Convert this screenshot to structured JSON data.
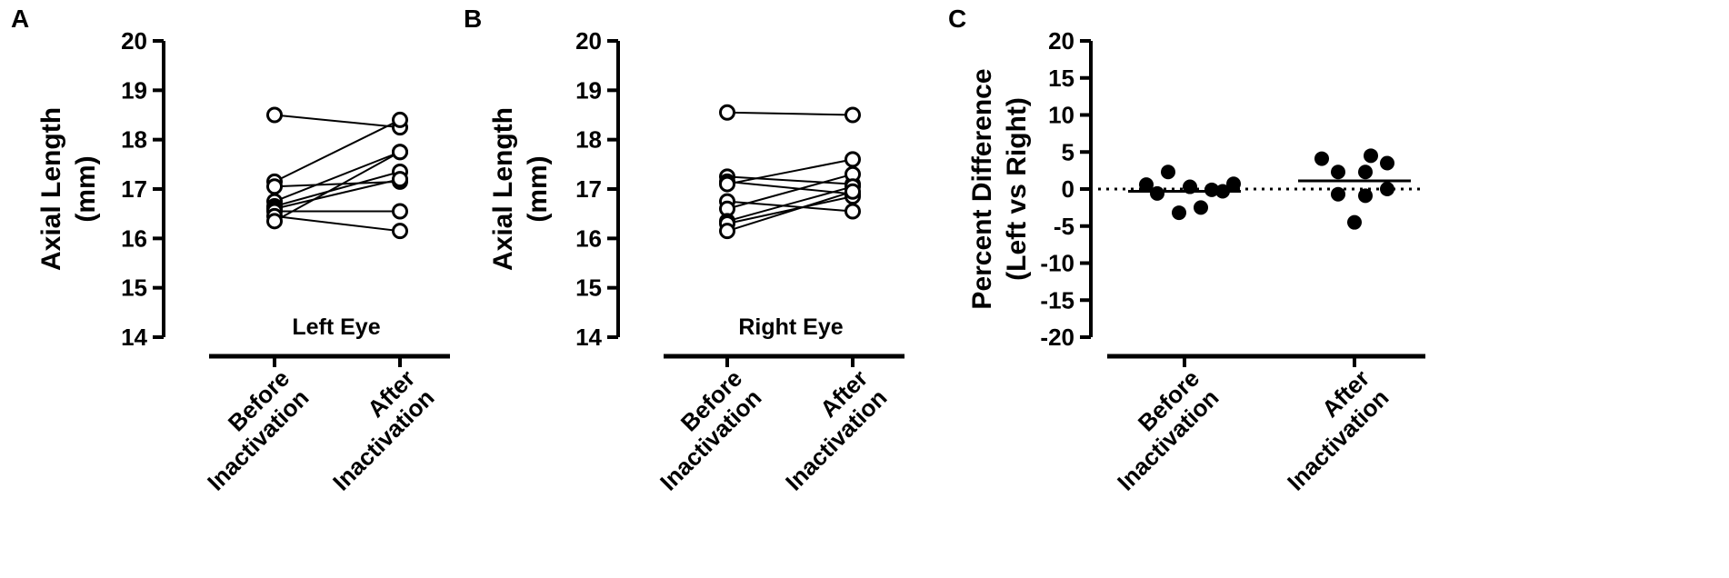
{
  "chart_data": [
    {
      "panel": "A",
      "type": "line",
      "title": "Left Eye",
      "ylabel": "Axial Length",
      "yunit": "(mm)",
      "ylim": [
        14,
        20
      ],
      "yticks": [
        "20",
        "19",
        "18",
        "17",
        "16",
        "15",
        "14"
      ],
      "categories": [
        "Before Inactivation",
        "After Inactivation"
      ],
      "category_lines": [
        [
          "Before",
          "Inactivation"
        ],
        [
          "After",
          "Inactivation"
        ]
      ],
      "marker": "open-circle",
      "series": [
        {
          "values": [
            18.5,
            18.25
          ]
        },
        {
          "values": [
            17.15,
            18.4
          ]
        },
        {
          "values": [
            17.05,
            17.15
          ]
        },
        {
          "values": [
            16.75,
            17.75
          ]
        },
        {
          "values": [
            16.65,
            17.35
          ]
        },
        {
          "values": [
            16.6,
            17.2
          ]
        },
        {
          "values": [
            16.55,
            16.55
          ]
        },
        {
          "values": [
            16.45,
            16.15
          ]
        },
        {
          "values": [
            16.35,
            17.75
          ]
        }
      ]
    },
    {
      "panel": "B",
      "type": "line",
      "title": "Right Eye",
      "ylabel": "Axial Length",
      "yunit": "(mm)",
      "ylim": [
        14,
        20
      ],
      "yticks": [
        "20",
        "19",
        "18",
        "17",
        "16",
        "15",
        "14"
      ],
      "categories": [
        "Before Inactivation",
        "After Inactivation"
      ],
      "category_lines": [
        [
          "Before",
          "Inactivation"
        ],
        [
          "After",
          "Inactivation"
        ]
      ],
      "marker": "open-circle",
      "series": [
        {
          "values": [
            18.55,
            18.5
          ]
        },
        {
          "values": [
            17.25,
            17.1
          ]
        },
        {
          "values": [
            17.15,
            16.9
          ]
        },
        {
          "values": [
            17.1,
            17.6
          ]
        },
        {
          "values": [
            16.75,
            16.55
          ]
        },
        {
          "values": [
            16.6,
            17.3
          ]
        },
        {
          "values": [
            16.35,
            17.05
          ]
        },
        {
          "values": [
            16.3,
            16.85
          ]
        },
        {
          "values": [
            16.15,
            16.95
          ]
        }
      ]
    },
    {
      "panel": "C",
      "type": "scatter",
      "ylabel": "Percent Difference",
      "yunit": "(Left vs Right)",
      "ylim": [
        -20,
        20
      ],
      "yticks": [
        "20",
        "15",
        "10",
        "5",
        "0",
        "-5",
        "-10",
        "-15",
        "-20"
      ],
      "reference_line": 0,
      "categories": [
        "Before Inactivation",
        "After Inactivation"
      ],
      "category_lines": [
        [
          "Before",
          "Inactivation"
        ],
        [
          "After",
          "Inactivation"
        ]
      ],
      "marker": "filled-circle",
      "groups": [
        {
          "mean": -0.3,
          "points": [
            {
              "dx": -3.5,
              "y": 0.6
            },
            {
              "dx": -2.5,
              "y": -0.6
            },
            {
              "dx": -1.5,
              "y": 2.3
            },
            {
              "dx": -0.5,
              "y": -3.2
            },
            {
              "dx": 0.5,
              "y": 0.3
            },
            {
              "dx": 1.5,
              "y": -2.5
            },
            {
              "dx": 2.5,
              "y": -0.1
            },
            {
              "dx": 3.5,
              "y": -0.3
            },
            {
              "dx": 4.5,
              "y": 0.7
            }
          ]
        },
        {
          "mean": 1.1,
          "points": [
            {
              "dx": -3.0,
              "y": 4.1
            },
            {
              "dx": -1.5,
              "y": 2.3
            },
            {
              "dx": -1.5,
              "y": -0.7
            },
            {
              "dx": 0.0,
              "y": -4.5
            },
            {
              "dx": 1.0,
              "y": 2.3
            },
            {
              "dx": 1.0,
              "y": -0.9
            },
            {
              "dx": 1.5,
              "y": 4.5
            },
            {
              "dx": 3.0,
              "y": 3.5
            },
            {
              "dx": 3.0,
              "y": 0.0
            }
          ]
        }
      ]
    }
  ]
}
